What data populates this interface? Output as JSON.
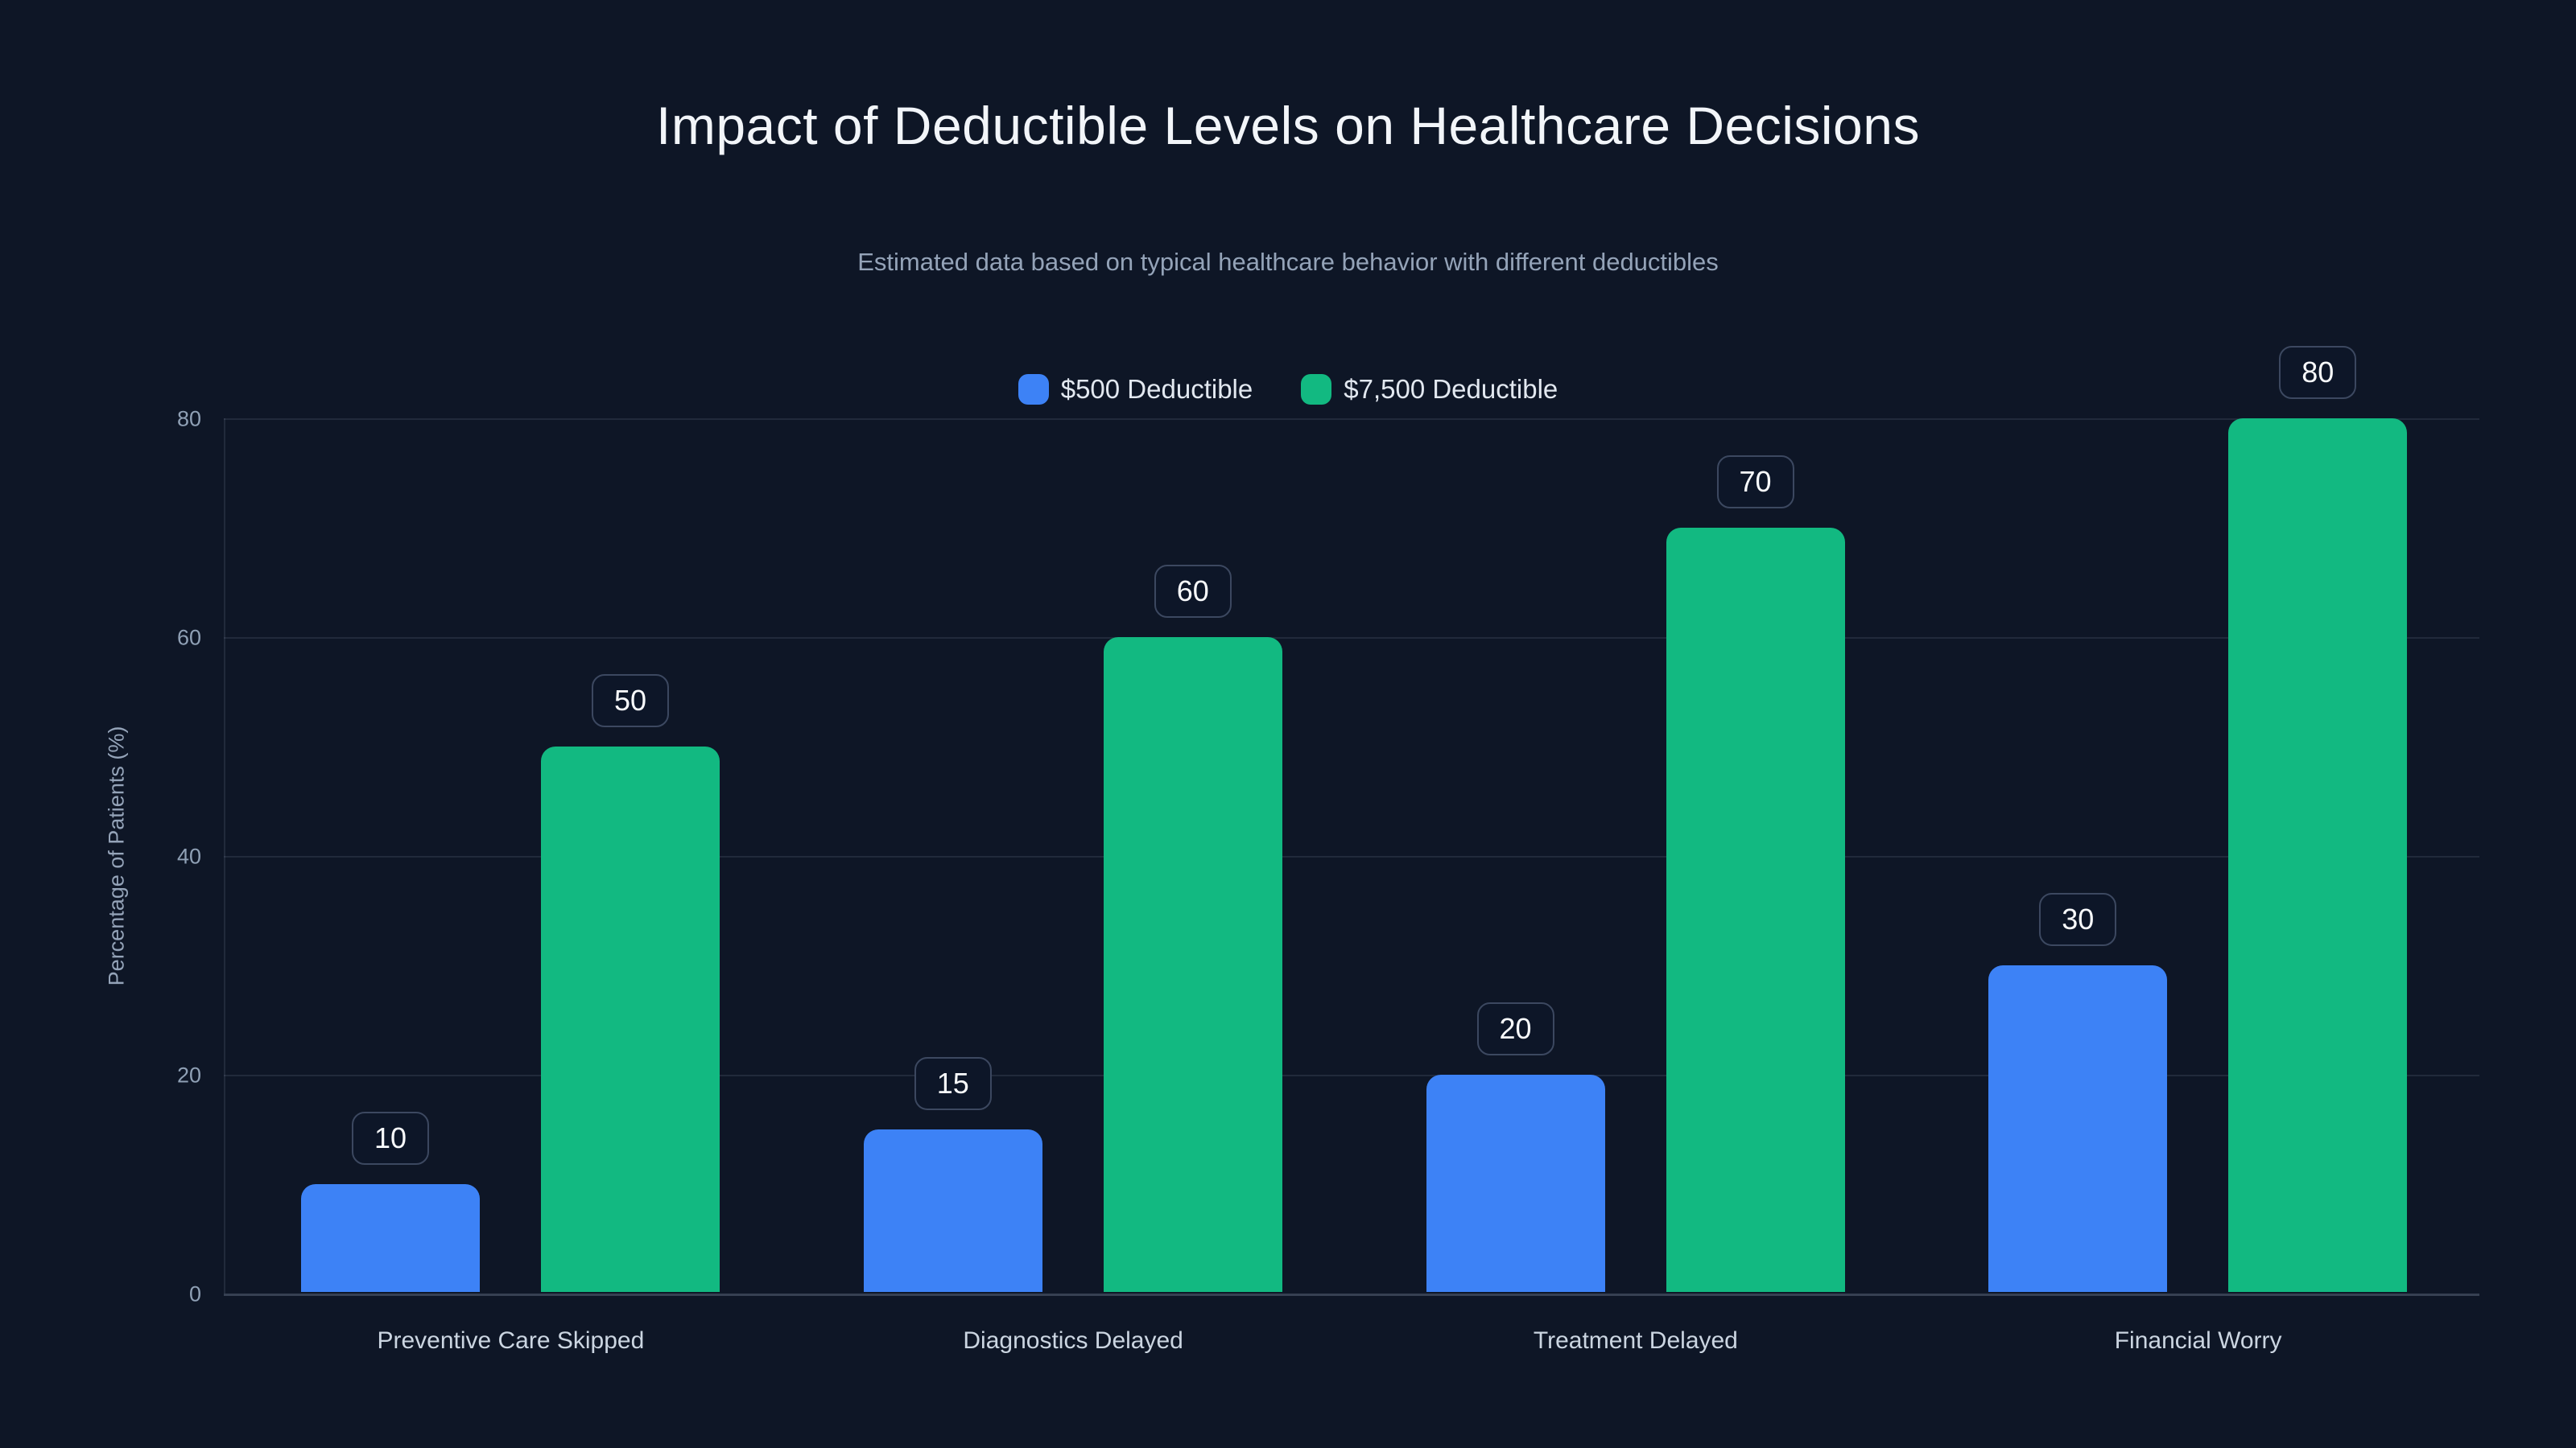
{
  "chart_data": {
    "type": "bar",
    "title": "Impact of Deductible Levels on Healthcare Decisions",
    "subtitle": "Estimated data based on typical healthcare behavior with different deductibles",
    "ylabel": "Percentage of Patients (%)",
    "categories": [
      "Preventive Care Skipped",
      "Diagnostics Delayed",
      "Treatment Delayed",
      "Financial Worry"
    ],
    "series": [
      {
        "name": "$500 Deductible",
        "color": "#3d82f6",
        "values": [
          10,
          15,
          20,
          30
        ]
      },
      {
        "name": "$7,500 Deductible",
        "color": "#12b981",
        "values": [
          50,
          60,
          70,
          80
        ]
      }
    ],
    "yticks": [
      0,
      20,
      40,
      60,
      80
    ],
    "ylim": [
      0,
      80
    ],
    "grid": "horizontal",
    "legend_position": "top",
    "value_labels": true
  },
  "colors": {
    "background": "#0e1626",
    "blue_series": "#3d82f6",
    "green_series": "#12b981",
    "title_text": "#f2f5f9",
    "subtitle_text": "#94a3b8",
    "tick_text": "#8fa0b5",
    "category_text": "#cbd5e1",
    "legend_text": "#e2e8f0",
    "value_text": "#f8fafc",
    "value_box_border": "#3c4860",
    "value_box_bg": "#0d1628",
    "grid_line": "rgba(148,163,184,0.15)",
    "axis_line": "rgba(148,163,184,0.30)"
  }
}
